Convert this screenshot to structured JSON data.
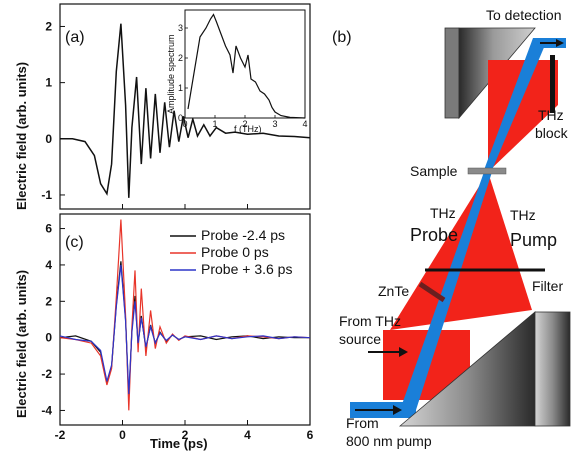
{
  "figure": {
    "panel_labels": {
      "a": "(a)",
      "b": "(b)",
      "c": "(c)"
    }
  },
  "chart_data": [
    {
      "id": "panel-a",
      "type": "line",
      "ylabel": "Electric field (arb. units)",
      "ylim": [
        -1.25,
        2.4
      ],
      "xlim": [
        -2,
        6
      ],
      "yticks": [
        "-1",
        "0",
        "1",
        "2"
      ],
      "yticks_values": [
        -1,
        0,
        1,
        2
      ],
      "series": [
        {
          "x": [
            -2.0,
            -1.6,
            -1.2,
            -0.9,
            -0.7,
            -0.5,
            -0.35,
            -0.2,
            -0.05,
            0.1,
            0.2,
            0.3,
            0.45,
            0.6,
            0.75,
            0.9,
            1.05,
            1.2,
            1.35,
            1.5,
            1.65,
            1.8,
            1.95,
            2.1,
            2.25,
            2.4,
            2.6,
            2.8,
            3.0,
            3.3,
            3.6,
            4.0,
            4.5,
            5.0,
            5.5,
            6.0
          ],
          "y": [
            0,
            0,
            -0.05,
            -0.3,
            -0.8,
            -0.98,
            -0.45,
            1.2,
            2.05,
            0.6,
            -1.05,
            0.2,
            1.1,
            -0.45,
            0.9,
            -0.35,
            0.8,
            -0.25,
            0.65,
            -0.15,
            0.5,
            -0.05,
            0.4,
            0.02,
            0.35,
            0.05,
            0.25,
            0.05,
            0.2,
            0.1,
            0.12,
            0.08,
            0.1,
            0.05,
            0.04,
            0.02
          ]
        }
      ],
      "inset": {
        "ylabel": "Amplitude spectrum",
        "xlabel": "f (THz)",
        "xlim": [
          0,
          4
        ],
        "ylim": [
          0,
          3.6
        ],
        "xticks": [
          "0",
          "1",
          "2",
          "3",
          "4"
        ],
        "xticks_values": [
          0,
          1,
          2,
          3,
          4
        ],
        "yticks": [
          "0",
          "1",
          "2",
          "3"
        ],
        "yticks_values": [
          0,
          1,
          2,
          3
        ],
        "x": [
          0.1,
          0.3,
          0.5,
          0.7,
          0.85,
          0.95,
          1.05,
          1.2,
          1.35,
          1.5,
          1.6,
          1.7,
          1.85,
          2.0,
          2.1,
          2.2,
          2.35,
          2.5,
          2.65,
          2.8,
          2.9,
          3.0,
          3.2,
          3.5,
          4.0
        ],
        "y": [
          0.3,
          1.5,
          2.7,
          3.0,
          3.3,
          3.45,
          3.2,
          2.8,
          2.4,
          2.1,
          1.5,
          2.4,
          2.0,
          1.7,
          2.1,
          1.3,
          1.2,
          0.9,
          0.8,
          0.6,
          0.35,
          0.2,
          0.08,
          0.02,
          0.0
        ]
      }
    },
    {
      "id": "panel-c",
      "type": "line",
      "xlabel": "Time (ps)",
      "ylabel": "Electric field (arb. units)",
      "xlim": [
        -2,
        6
      ],
      "ylim": [
        -4.8,
        6.8
      ],
      "xticks": [
        "-2",
        "0",
        "2",
        "4",
        "6"
      ],
      "xticks_values": [
        -2,
        0,
        2,
        4,
        6
      ],
      "yticks": [
        "-4",
        "-2",
        "0",
        "2",
        "4",
        "6"
      ],
      "yticks_values": [
        -4,
        -2,
        0,
        2,
        4,
        6
      ],
      "legend": "top-right",
      "series": [
        {
          "name": "Probe -2.4 ps",
          "color": "#111111",
          "x": [
            -2.0,
            -1.5,
            -1.0,
            -0.7,
            -0.5,
            -0.35,
            -0.2,
            -0.05,
            0.1,
            0.2,
            0.3,
            0.4,
            0.5,
            0.6,
            0.75,
            0.9,
            1.05,
            1.2,
            1.4,
            1.6,
            1.8,
            2.0,
            2.5,
            3.0,
            3.5,
            4.0,
            4.5,
            5.0,
            5.5,
            6.0
          ],
          "y": [
            0,
            0.1,
            -0.2,
            -0.8,
            -2.5,
            -1.6,
            1.8,
            4.2,
            1.0,
            -3.3,
            0.4,
            2.3,
            -0.4,
            1.2,
            -0.6,
            0.7,
            -0.3,
            0.3,
            -0.2,
            0.15,
            -0.1,
            0.05,
            0.1,
            -0.1,
            0.05,
            0.1,
            -0.05,
            0.05,
            0,
            0
          ]
        },
        {
          "name": "Probe 0 ps",
          "color": "#e8352a",
          "x": [
            -2.0,
            -1.5,
            -1.0,
            -0.7,
            -0.5,
            -0.35,
            -0.2,
            -0.05,
            0.1,
            0.2,
            0.3,
            0.4,
            0.5,
            0.6,
            0.75,
            0.9,
            1.05,
            1.2,
            1.4,
            1.6,
            1.8,
            2.0,
            2.5,
            3.0,
            3.5,
            4.0,
            4.5,
            5.0,
            5.5,
            6.0
          ],
          "y": [
            0,
            -0.1,
            -0.3,
            -1.0,
            -2.6,
            -1.7,
            2.2,
            6.5,
            1.2,
            -4.0,
            0.6,
            3.7,
            -0.8,
            2.7,
            -1.0,
            1.5,
            -0.6,
            0.6,
            -0.3,
            0.2,
            -0.15,
            0.1,
            -0.1,
            0.1,
            -0.05,
            0.1,
            0.05,
            -0.05,
            0.05,
            0
          ]
        },
        {
          "name": "Probe + 3.6 ps",
          "color": "#2d35c8",
          "x": [
            -2.0,
            -1.5,
            -1.0,
            -0.7,
            -0.5,
            -0.35,
            -0.2,
            -0.05,
            0.1,
            0.2,
            0.3,
            0.4,
            0.5,
            0.6,
            0.75,
            0.9,
            1.05,
            1.2,
            1.4,
            1.6,
            1.8,
            2.0,
            2.5,
            3.0,
            3.5,
            4.0,
            4.5,
            5.0,
            5.5,
            6.0
          ],
          "y": [
            0.1,
            -0.1,
            -0.2,
            -0.7,
            -2.4,
            -1.5,
            1.7,
            4.0,
            0.9,
            -3.1,
            0.3,
            2.0,
            -0.3,
            1.1,
            -0.5,
            0.6,
            -0.3,
            0.25,
            -0.15,
            0.15,
            -0.1,
            0.05,
            -0.1,
            0.1,
            -0.05,
            0.05,
            0.1,
            -0.05,
            0.05,
            0
          ]
        }
      ]
    }
  ],
  "diagram": {
    "labels": {
      "to_detection": "To detection",
      "thz_block_line1": "THz",
      "thz_block_line2": "block",
      "sample": "Sample",
      "thz_probe_line1": "THz",
      "thz_probe_line2": "Probe",
      "thz_pump_line1": "THz",
      "thz_pump_line2": "Pump",
      "znte": "ZnTe",
      "filter": "Filter",
      "from_thz_line1": "From THz",
      "from_thz_line2": "source",
      "from_pump_line1": "From",
      "from_pump_line2": "800 nm pump"
    },
    "colors": {
      "thz": "#f2231a",
      "probe": "#1a7fd8"
    }
  }
}
